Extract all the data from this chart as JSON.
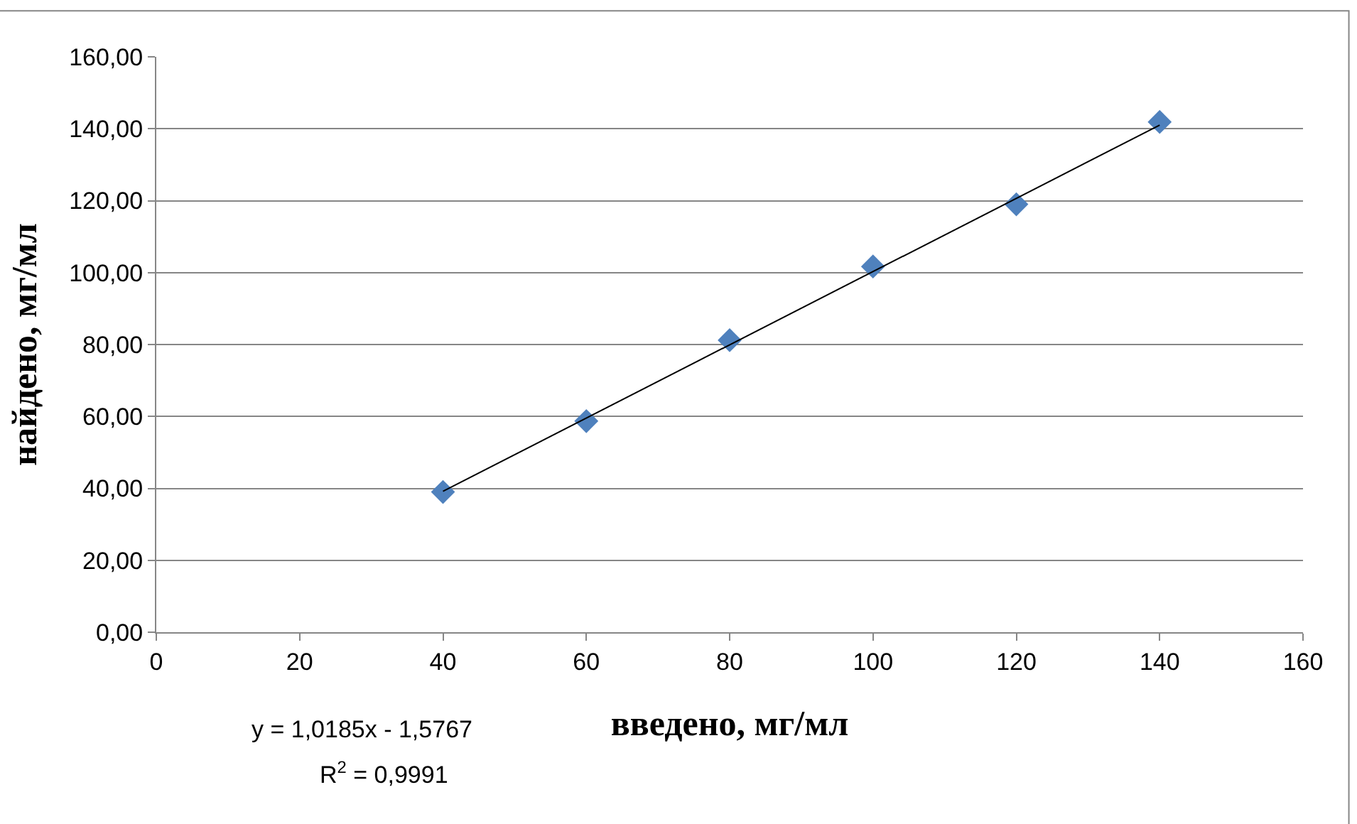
{
  "chart_data": {
    "type": "scatter",
    "xlabel": "введено, мг/мл",
    "ylabel": "найдено, мг/мл",
    "x": [
      40,
      60,
      80,
      100,
      120,
      140
    ],
    "series": [
      {
        "color": "#4f81bd",
        "values": [
          39.0,
          58.7,
          81.2,
          101.7,
          119.0,
          141.9
        ],
        "marker": "diamond"
      },
      {
        "type": "line",
        "color": "#000000",
        "x": [
          40,
          140
        ],
        "values": [
          39.2,
          141.0
        ],
        "marker": "none",
        "line_style": "solid"
      }
    ],
    "xlim": [
      0,
      160
    ],
    "xticks": [
      0,
      20,
      40,
      60,
      80,
      100,
      120,
      140,
      160
    ],
    "ylim": [
      0,
      160
    ],
    "yticks": [
      {
        "value": 0,
        "label": "0,00"
      },
      {
        "value": 20,
        "label": "20,00"
      },
      {
        "value": 40,
        "label": "40,00"
      },
      {
        "value": 60,
        "label": "60,00"
      },
      {
        "value": 80,
        "label": "80,00"
      },
      {
        "value": 100,
        "label": "100,00"
      },
      {
        "value": 120,
        "label": "120,00"
      },
      {
        "value": 140,
        "label": "140,00"
      },
      {
        "value": 160,
        "label": "160,00"
      }
    ],
    "grid": "y",
    "annotations": [
      "y = 1,0185x - 1,5767",
      "R$^{2}$ = 0,9991"
    ]
  }
}
